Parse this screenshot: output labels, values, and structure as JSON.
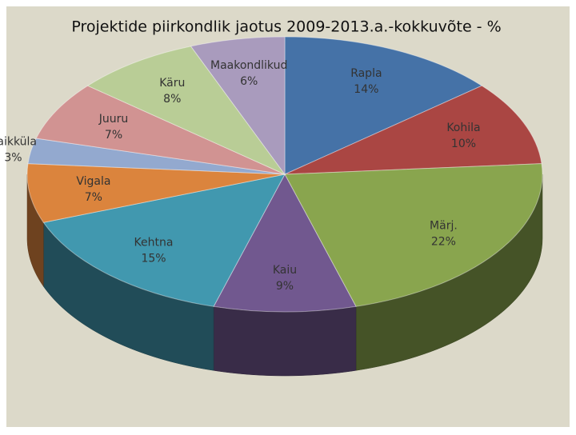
{
  "chart_data": {
    "type": "pie3d",
    "title": "Projektide piirkondlik jaotus 2009-2013.a.-kokkuvõte - %",
    "categories": [
      "Rapla",
      "Kohila",
      "Märj.",
      "Kaiu",
      "Kehtna",
      "Vigala",
      "Raikküla",
      "Juuru",
      "Käru",
      "Maakondlikud"
    ],
    "values": [
      14,
      10,
      22,
      9,
      15,
      7,
      3,
      7,
      8,
      6
    ],
    "value_labels": [
      "14%",
      "10%",
      "22%",
      "9%",
      "15%",
      "7%",
      "3%",
      "7%",
      "8%",
      "6%"
    ],
    "colors": [
      "#4572a7",
      "#aa4643",
      "#89a54e",
      "#71588f",
      "#4198af",
      "#db843d",
      "#93a9cf",
      "#d19392",
      "#b9cd96",
      "#a99bbd"
    ]
  }
}
